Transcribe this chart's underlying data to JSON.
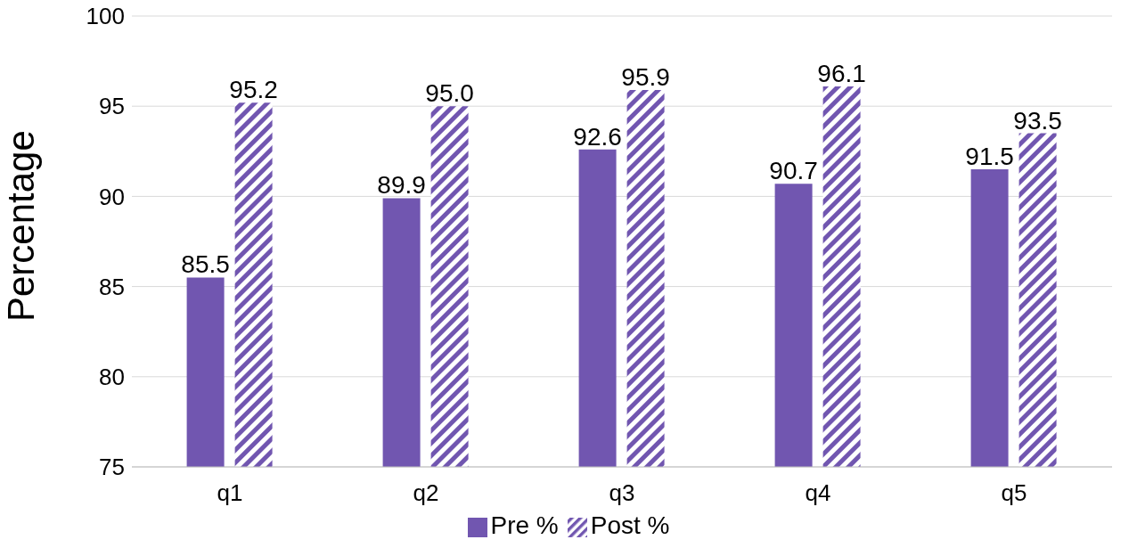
{
  "chart_data": {
    "type": "bar",
    "categories": [
      "q1",
      "q2",
      "q3",
      "q4",
      "q5"
    ],
    "series": [
      {
        "name": "Pre %",
        "color": "#7156b0",
        "values": [
          85.5,
          89.9,
          92.6,
          90.7,
          91.5
        ],
        "value_labels": [
          "85.5",
          "89.9",
          "92.6",
          "90.7",
          "91.5"
        ]
      },
      {
        "name": "Post %",
        "color": "#7156b0",
        "values": [
          95.2,
          95.0,
          95.9,
          96.1,
          93.5
        ],
        "value_labels": [
          "95.2",
          "95.0",
          "95.9",
          "96.1",
          "93.5"
        ]
      }
    ],
    "ylabel": "Percentage",
    "ylim": [
      75,
      100
    ],
    "yticks": [
      75,
      80,
      85,
      90,
      95,
      100
    ],
    "grid": "y",
    "legend": "bottom"
  }
}
